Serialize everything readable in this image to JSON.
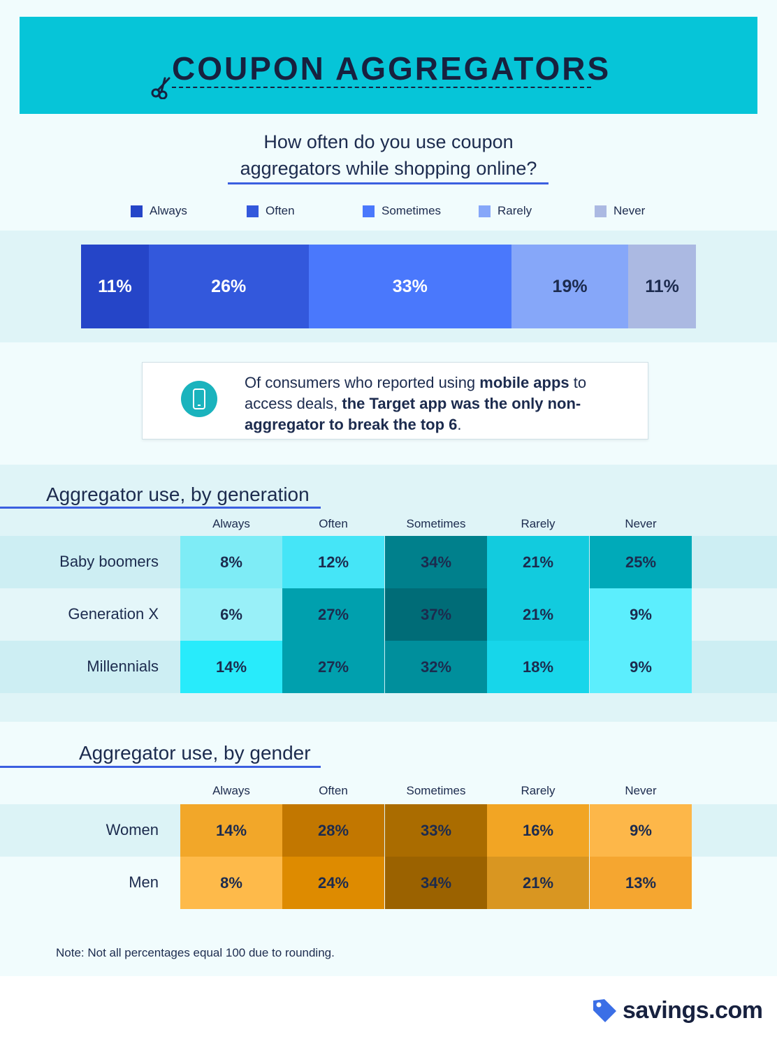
{
  "header": {
    "title": "COUPON AGGREGATORS",
    "icon": "scissors-icon"
  },
  "question": {
    "line1": "How often do you use coupon",
    "line2": "aggregators while shopping online?"
  },
  "chart_data": [
    {
      "type": "bar",
      "orientation": "horizontal-stacked",
      "categories": [
        "Always",
        "Often",
        "Sometimes",
        "Rarely",
        "Never"
      ],
      "values": [
        11,
        26,
        33,
        19,
        11
      ],
      "value_labels": [
        "11%",
        "26%",
        "33%",
        "19%",
        "11%"
      ],
      "colors": [
        "#2545c8",
        "#3358dc",
        "#4a78fc",
        "#86a7f9",
        "#abb9e2"
      ],
      "label_colors": [
        "#ffffff",
        "#ffffff",
        "#ffffff",
        "#1c2b4e",
        "#1c2b4e"
      ],
      "legend": "top"
    },
    {
      "type": "heatmap",
      "title": "Aggregator use, by generation",
      "columns": [
        "Always",
        "Often",
        "Sometimes",
        "Rarely",
        "Never"
      ],
      "rows": [
        "Baby boomers",
        "Generation X",
        "Millennials"
      ],
      "values": [
        [
          8,
          12,
          34,
          21,
          25
        ],
        [
          6,
          27,
          37,
          21,
          9
        ],
        [
          14,
          27,
          32,
          18,
          9
        ]
      ],
      "colors": [
        [
          "#7eecf6",
          "#45e5f7",
          "#00808c",
          "#12cbde",
          "#00aab9"
        ],
        [
          "#99f0f8",
          "#00a0ae",
          "#006c77",
          "#12cbde",
          "#5ceefd"
        ],
        [
          "#28ebfb",
          "#00a0ae",
          "#008f9c",
          "#17d6ea",
          "#5ceefd"
        ]
      ]
    },
    {
      "type": "heatmap",
      "title": "Aggregator use, by gender",
      "columns": [
        "Always",
        "Often",
        "Sometimes",
        "Rarely",
        "Never"
      ],
      "rows": [
        "Women",
        "Men"
      ],
      "values": [
        [
          14,
          28,
          33,
          16,
          9
        ],
        [
          8,
          24,
          34,
          21,
          13
        ]
      ],
      "colors": [
        [
          "#f2a729",
          "#c27700",
          "#aa6c00",
          "#f2a524",
          "#fdb749"
        ],
        [
          "#feba4a",
          "#de8b00",
          "#9b6200",
          "#d99621",
          "#f5a630"
        ]
      ]
    }
  ],
  "callout": {
    "icon": "mobile-phone-icon",
    "text_1": "Of consumers who reported using ",
    "bold_1": "mobile apps",
    "text_2": " to access deals, ",
    "bold_2": "the Target app was the only non-aggregator to break the top 6",
    "text_3": "."
  },
  "note": "Note: Not all percentages equal 100 due to rounding.",
  "brand": {
    "name": "savings.com",
    "icon": "price-tag-icon",
    "color": "#3b6fe6"
  },
  "colors": {
    "header_bg": "#06c5d8",
    "accent_line": "#3b5fe0",
    "page_bg": "#f1fcfd",
    "band_bg": "#dff4f7"
  }
}
